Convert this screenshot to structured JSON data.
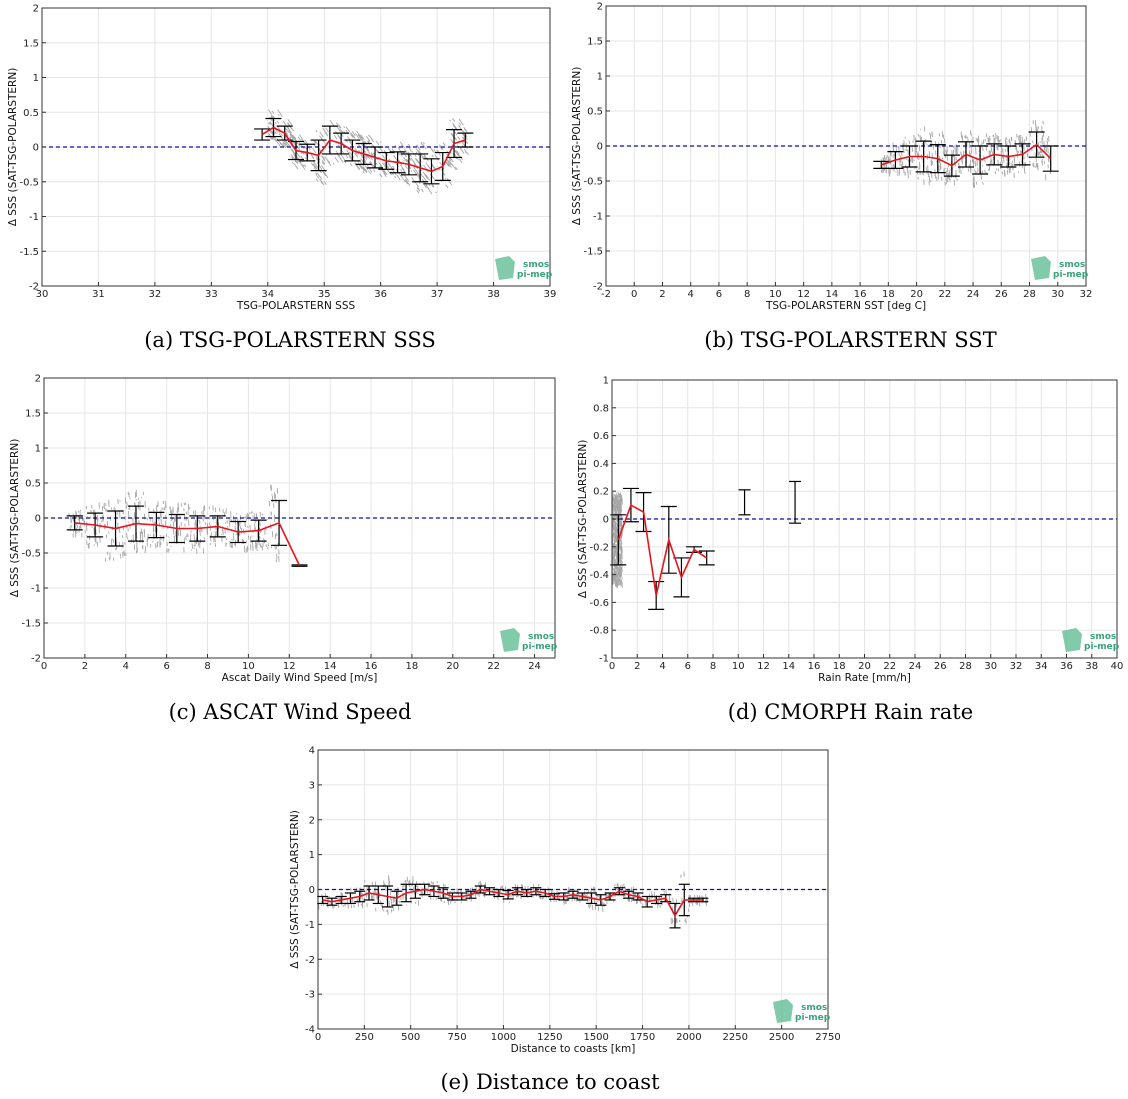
{
  "colors": {
    "mean_line": "#e8141c",
    "zero_line": "#0a12a0",
    "error_bar": "#000000",
    "scatter": "#8a8a8a",
    "grid": "#e6e6e6",
    "logo": "#58b98e"
  },
  "logo": {
    "line1": "smos",
    "line2": "pi-mep"
  },
  "chart_data": [
    {
      "id": "a",
      "type": "line",
      "caption": "(a) TSG-POLARSTERN SSS",
      "xlabel": "TSG-POLARSTERN SSS",
      "ylabel": "Δ SSS (SAT-TSG-POLARSTERN)",
      "xlim": [
        30,
        39
      ],
      "ylim": [
        -2,
        2
      ],
      "xticks": [
        30,
        31,
        32,
        33,
        34,
        35,
        36,
        37,
        38,
        39
      ],
      "yticks": [
        -2,
        -1.5,
        -1,
        -0.5,
        0,
        0.5,
        1,
        1.5,
        2
      ],
      "grid": true,
      "zero_line": 0,
      "scatter_region": {
        "x": [
          34,
          37.5
        ],
        "y": [
          -1,
          0.5
        ]
      },
      "series": [
        {
          "x": [
            33.9,
            34.1,
            34.3,
            34.5,
            34.7,
            34.9,
            35.1,
            35.3,
            35.5,
            35.7,
            35.9,
            36.1,
            36.3,
            36.5,
            36.7,
            36.9,
            37.1,
            37.3,
            37.5
          ],
          "y": [
            0.18,
            0.28,
            0.2,
            -0.05,
            -0.08,
            -0.12,
            0.1,
            0.05,
            -0.05,
            -0.1,
            -0.15,
            -0.2,
            -0.22,
            -0.25,
            -0.3,
            -0.35,
            -0.28,
            0.05,
            0.1
          ],
          "err": [
            0.08,
            0.13,
            0.1,
            0.13,
            0.12,
            0.22,
            0.2,
            0.15,
            0.15,
            0.15,
            0.15,
            0.12,
            0.15,
            0.15,
            0.2,
            0.18,
            0.2,
            0.2,
            0.1
          ]
        }
      ]
    },
    {
      "id": "b",
      "type": "line",
      "caption": "(b) TSG-POLARSTERN SST",
      "xlabel": "TSG-POLARSTERN SST [deg C]",
      "ylabel": "Δ SSS (SAT-TSG-POLARSTERN)",
      "xlim": [
        -2,
        32
      ],
      "ylim": [
        -2,
        2
      ],
      "xticks": [
        -2,
        0,
        2,
        4,
        6,
        8,
        10,
        12,
        14,
        16,
        18,
        20,
        22,
        24,
        26,
        28,
        30,
        32
      ],
      "yticks": [
        -2,
        -1.5,
        -1,
        -0.5,
        0,
        0.5,
        1,
        1.5,
        2
      ],
      "grid": true,
      "zero_line": 0,
      "scatter_region": {
        "x": [
          17.5,
          29.5
        ],
        "y": [
          -1,
          0.6
        ]
      },
      "series": [
        {
          "x": [
            17.5,
            18.5,
            19.5,
            20.5,
            21.5,
            22.5,
            23.5,
            24.5,
            25.5,
            26.5,
            27.5,
            28.5,
            29.5
          ],
          "y": [
            -0.27,
            -0.2,
            -0.15,
            -0.15,
            -0.18,
            -0.28,
            -0.12,
            -0.2,
            -0.12,
            -0.15,
            -0.12,
            0.02,
            -0.18
          ],
          "err": [
            0.05,
            0.12,
            0.15,
            0.22,
            0.2,
            0.15,
            0.18,
            0.2,
            0.15,
            0.15,
            0.15,
            0.18,
            0.18
          ]
        }
      ]
    },
    {
      "id": "c",
      "type": "line",
      "caption": "(c) ASCAT Wind Speed",
      "xlabel": "Ascat Daily Wind Speed [m/s]",
      "ylabel": "Δ SSS (SAT-TSG-POLARSTERN)",
      "xlim": [
        0,
        25
      ],
      "ylim": [
        -2,
        2
      ],
      "xticks": [
        0,
        2,
        4,
        6,
        8,
        10,
        12,
        14,
        16,
        18,
        20,
        22,
        24
      ],
      "yticks": [
        -2,
        -1.5,
        -1,
        -0.5,
        0,
        0.5,
        1,
        1.5,
        2
      ],
      "grid": true,
      "zero_line": 0,
      "scatter_region": {
        "x": [
          1.2,
          11.5
        ],
        "y": [
          -1,
          0.6
        ]
      },
      "series": [
        {
          "x": [
            1.5,
            2.5,
            3.5,
            4.5,
            5.5,
            6.5,
            7.5,
            8.5,
            9.5,
            10.5,
            11.5,
            12.5
          ],
          "y": [
            -0.07,
            -0.1,
            -0.15,
            -0.08,
            -0.1,
            -0.15,
            -0.15,
            -0.12,
            -0.2,
            -0.18,
            -0.07,
            -0.68
          ],
          "err": [
            0.1,
            0.17,
            0.25,
            0.25,
            0.18,
            0.2,
            0.18,
            0.15,
            0.15,
            0.15,
            0.32,
            0.01
          ]
        }
      ]
    },
    {
      "id": "d",
      "type": "line",
      "caption": "(d) CMORPH Rain rate",
      "xlabel": "Rain Rate [mm/h]",
      "ylabel": "Δ SSS (SAT-TSG-POLARSTERN)",
      "xlim": [
        0,
        40
      ],
      "ylim": [
        -1,
        1
      ],
      "xticks": [
        0,
        2,
        4,
        6,
        8,
        10,
        12,
        14,
        16,
        18,
        20,
        22,
        24,
        26,
        28,
        30,
        32,
        34,
        36,
        38,
        40
      ],
      "yticks": [
        -1,
        -0.8,
        -0.6,
        -0.4,
        -0.2,
        0,
        0.2,
        0.4,
        0.6,
        0.8,
        1
      ],
      "grid": true,
      "zero_line": 0,
      "scatter_region": {
        "x": [
          0,
          0.8
        ],
        "y": [
          -0.6,
          0.5
        ]
      },
      "series": [
        {
          "x": [
            0.5,
            1.5,
            2.5,
            3.5,
            4.5,
            5.5,
            6.5,
            7.5
          ],
          "y": [
            -0.15,
            0.1,
            0.05,
            -0.55,
            -0.15,
            -0.42,
            -0.22,
            -0.28
          ],
          "err": [
            0.18,
            0.12,
            0.14,
            0.1,
            0.24,
            0.14,
            0.02,
            0.05
          ]
        }
      ],
      "errorbars_only": [
        {
          "x": 10.5,
          "y": 0.12,
          "err": 0.09
        },
        {
          "x": 14.5,
          "y": 0.12,
          "err": 0.15
        }
      ]
    },
    {
      "id": "e",
      "type": "line",
      "caption": "(e) Distance to coast",
      "xlabel": "Distance to coasts [km]",
      "ylabel": "Δ SSS (SAT-TSG-POLARSTERN)",
      "xlim": [
        0,
        2750
      ],
      "ylim": [
        -4,
        4
      ],
      "xticks": [
        0,
        250,
        500,
        750,
        1000,
        1250,
        1500,
        1750,
        2000,
        2250,
        2500,
        2750
      ],
      "yticks": [
        -4,
        -3,
        -2,
        -1,
        0,
        1,
        2,
        3,
        4
      ],
      "grid": true,
      "zero_line": 0,
      "scatter_region": {
        "x": [
          0,
          2100
        ],
        "y": [
          -0.9,
          0.6
        ]
      },
      "series": [
        {
          "x": [
            25,
            75,
            125,
            175,
            225,
            275,
            325,
            375,
            425,
            475,
            525,
            575,
            625,
            675,
            725,
            775,
            825,
            875,
            925,
            975,
            1025,
            1075,
            1125,
            1175,
            1225,
            1275,
            1325,
            1375,
            1425,
            1475,
            1525,
            1575,
            1625,
            1675,
            1725,
            1775,
            1825,
            1875,
            1925,
            1975,
            2025,
            2075
          ],
          "y": [
            -0.3,
            -0.35,
            -0.3,
            -0.25,
            -0.2,
            -0.1,
            -0.15,
            -0.2,
            -0.25,
            -0.1,
            -0.05,
            0,
            -0.05,
            -0.1,
            -0.2,
            -0.2,
            -0.15,
            0,
            -0.05,
            -0.1,
            -0.15,
            -0.05,
            -0.1,
            -0.05,
            -0.1,
            -0.2,
            -0.2,
            -0.15,
            -0.2,
            -0.25,
            -0.3,
            -0.2,
            -0.05,
            -0.15,
            -0.2,
            -0.35,
            -0.3,
            -0.25,
            -0.75,
            -0.3,
            -0.3,
            -0.3
          ],
          "err": [
            0.1,
            0.1,
            0.1,
            0.15,
            0.15,
            0.2,
            0.25,
            0.3,
            0.2,
            0.25,
            0.2,
            0.15,
            0.15,
            0.15,
            0.1,
            0.1,
            0.1,
            0.1,
            0.1,
            0.1,
            0.12,
            0.1,
            0.1,
            0.1,
            0.1,
            0.08,
            0.1,
            0.1,
            0.1,
            0.15,
            0.15,
            0.1,
            0.1,
            0.1,
            0.1,
            0.15,
            0.1,
            0.1,
            0.35,
            0.45,
            0.05,
            0.05
          ]
        }
      ]
    }
  ]
}
